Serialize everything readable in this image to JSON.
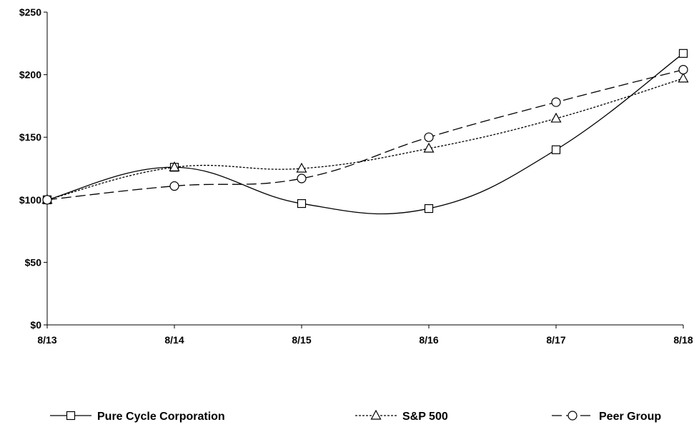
{
  "chart_data": {
    "type": "line",
    "categories": [
      "8/13",
      "8/14",
      "8/15",
      "8/16",
      "8/17",
      "8/18"
    ],
    "ylim": [
      0,
      250
    ],
    "yticks": [
      0,
      50,
      100,
      150,
      200,
      250
    ],
    "ytick_labels": [
      "$0",
      "$50",
      "$100",
      "$150",
      "$200",
      "$250"
    ],
    "grid": false,
    "legend_position": "bottom",
    "series": [
      {
        "name": "Pure Cycle Corporation",
        "values": [
          100,
          126,
          97,
          93,
          140,
          217
        ],
        "line_style": "solid",
        "marker": "square",
        "color": "#000000"
      },
      {
        "name": "S&P 500",
        "values": [
          100,
          126,
          125,
          141,
          165,
          197
        ],
        "line_style": "dotted",
        "marker": "triangle",
        "color": "#000000"
      },
      {
        "name": "Peer Group",
        "values": [
          100,
          111,
          117,
          150,
          178,
          204
        ],
        "line_style": "dashed",
        "marker": "circle",
        "color": "#000000"
      }
    ]
  }
}
